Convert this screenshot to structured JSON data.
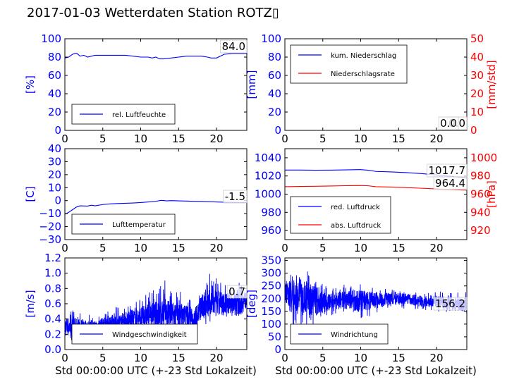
{
  "title": "2017-01-03 Wetterdaten Station ROTZ▯",
  "colors": {
    "left_axis": "#0000ff",
    "right_axis": "#ff0000",
    "series1": "#0000ff",
    "series2": "#ff0000"
  },
  "chart_data": [
    {
      "type": "line",
      "name": "humidity",
      "ylabel": "[%]",
      "xlim": [
        0,
        24
      ],
      "ylim": [
        0,
        100
      ],
      "xticks": [
        0,
        5,
        10,
        15,
        20
      ],
      "yticks": [
        0,
        20,
        40,
        60,
        80,
        100
      ],
      "legend": [
        "rel. Luftfeuchte"
      ],
      "legend_placement": "bottom-left",
      "annotations": [
        "84.0"
      ],
      "series": [
        {
          "name": "rel. Luftfeuchte",
          "color": "#0000ff",
          "x": [
            0,
            0.5,
            1,
            1.3,
            1.6,
            2,
            2.5,
            3,
            3.5,
            4,
            5,
            6,
            7,
            8,
            9,
            10,
            11,
            11.5,
            12,
            12.5,
            13,
            14,
            15,
            16,
            17,
            18,
            18.8,
            19.3,
            20,
            20.5,
            21,
            22,
            23,
            24
          ],
          "y": [
            79,
            80,
            83,
            84,
            84,
            81,
            82,
            80,
            81,
            82,
            82,
            82,
            82,
            82,
            81,
            80,
            80,
            79,
            80,
            78,
            78,
            79,
            80,
            81,
            81,
            81,
            80,
            79,
            79,
            81,
            83,
            84,
            84,
            84
          ]
        }
      ]
    },
    {
      "type": "line",
      "name": "precipitation",
      "ylabel": "[mm]",
      "y2label": "[mm/std]",
      "xlim": [
        0,
        24
      ],
      "ylim": [
        0,
        100
      ],
      "y2lim": [
        0,
        50
      ],
      "xticks": [
        0,
        5,
        10,
        15,
        20
      ],
      "yticks": [
        0,
        20,
        40,
        60,
        80,
        100
      ],
      "y2ticks": [
        0,
        10,
        20,
        30,
        40,
        50
      ],
      "legend": [
        "kum. Niederschlag",
        "Niederschlagsrate"
      ],
      "legend_placement": "top-left",
      "annotations": [
        "0.0",
        "0.0"
      ],
      "series": [
        {
          "name": "kum. Niederschlag",
          "color": "#0000ff",
          "axis": "left",
          "x": [
            0,
            24
          ],
          "y": [
            0,
            0
          ]
        },
        {
          "name": "Niederschlagsrate",
          "color": "#ff0000",
          "axis": "right",
          "x": [
            0,
            24
          ],
          "y": [
            0,
            0
          ]
        }
      ]
    },
    {
      "type": "line",
      "name": "temperature",
      "ylabel": "[C]",
      "xlim": [
        0,
        24
      ],
      "ylim": [
        -30,
        40
      ],
      "xticks": [
        0,
        5,
        10,
        15,
        20
      ],
      "yticks": [
        -30,
        -20,
        -10,
        0,
        10,
        20,
        30,
        40
      ],
      "legend": [
        "Lufttemperatur"
      ],
      "legend_placement": "bottom-left",
      "annotations": [
        "-1.5"
      ],
      "series": [
        {
          "name": "Lufttemperatur",
          "color": "#0000ff",
          "x": [
            0,
            0.5,
            1,
            1.5,
            2,
            3,
            3.5,
            4,
            5,
            6,
            7,
            8,
            9,
            10,
            11,
            12,
            12.7,
            13.5,
            14,
            15,
            16,
            17,
            18,
            19,
            20,
            21,
            22,
            23,
            24
          ],
          "y": [
            -10.5,
            -9,
            -7,
            -5,
            -4,
            -4.2,
            -3.5,
            -4,
            -3,
            -2.5,
            -2.2,
            -2,
            -1.8,
            -1.5,
            -1,
            -0.5,
            0.2,
            -0.2,
            0,
            -0.2,
            -0.3,
            -0.5,
            -0.6,
            -0.8,
            -1,
            -1.2,
            -1.4,
            -1.5,
            -1.5
          ]
        }
      ]
    },
    {
      "type": "line",
      "name": "pressure",
      "y2label": "[hPa]",
      "xlim": [
        0,
        24
      ],
      "ylim": [
        950,
        1050
      ],
      "y2lim": [
        910,
        1010
      ],
      "xticks": [
        0,
        5,
        10,
        15,
        20
      ],
      "yticks": [
        960,
        980,
        1000,
        1020,
        1040
      ],
      "y2ticks": [
        920,
        940,
        960,
        980,
        1000
      ],
      "legend": [
        "red. Luftdruck",
        "abs. Luftdruck"
      ],
      "legend_placement": "bottom-left",
      "annotations": [
        "1017.7",
        "964.4"
      ],
      "series": [
        {
          "name": "red. Luftdruck",
          "color": "#0000ff",
          "axis": "left",
          "x": [
            0,
            2,
            4,
            6,
            8,
            10,
            11,
            12,
            14,
            16,
            18,
            20,
            22,
            24
          ],
          "y": [
            1026.5,
            1026.5,
            1026.3,
            1026.4,
            1026.7,
            1027.0,
            1026.3,
            1025.0,
            1024.5,
            1023.7,
            1022.6,
            1021.2,
            1019.5,
            1017.7
          ]
        },
        {
          "name": "abs. Luftdruck",
          "color": "#ff0000",
          "axis": "right",
          "x": [
            0,
            2,
            4,
            6,
            8,
            10,
            11,
            12,
            14,
            16,
            18,
            20,
            22,
            24
          ],
          "y": [
            968.2,
            968.5,
            968.7,
            969.0,
            969.3,
            969.5,
            969.2,
            968.2,
            967.8,
            967.2,
            966.5,
            965.8,
            965.0,
            964.4
          ]
        }
      ]
    },
    {
      "type": "line",
      "name": "windspeed",
      "ylabel": "[m/s]",
      "xlabel": "Std 00:00:00 UTC (+-23 Std Lokalzeit)",
      "xlim": [
        0,
        24
      ],
      "ylim": [
        0,
        1.2
      ],
      "xticks": [
        0,
        5,
        10,
        15,
        20
      ],
      "yticks": [
        0.0,
        0.2,
        0.4,
        0.6,
        0.8,
        1.0,
        1.2
      ],
      "legend": [
        "Windgeschwindigkeit"
      ],
      "legend_placement": "bottom-left",
      "annotations": [
        "0.7"
      ],
      "noise_seed": 7,
      "envelope": {
        "x": [
          0,
          2,
          4,
          5,
          6,
          8,
          10,
          11,
          12,
          13,
          14,
          15,
          16,
          17,
          18,
          19,
          20,
          21,
          22,
          23,
          24
        ],
        "lo": [
          0.1,
          0.15,
          0.2,
          0.2,
          0.2,
          0.22,
          0.22,
          0.24,
          0.25,
          0.25,
          0.25,
          0.25,
          0.25,
          0.27,
          0.3,
          0.35,
          0.35,
          0.4,
          0.4,
          0.45,
          0.45
        ],
        "hi": [
          0.55,
          0.5,
          0.45,
          0.5,
          0.55,
          0.6,
          0.7,
          0.75,
          0.85,
          0.95,
          0.85,
          0.8,
          0.75,
          0.65,
          0.85,
          1.0,
          0.95,
          0.9,
          0.85,
          1.08,
          0.8
        ],
        "mid": [
          0.3,
          0.3,
          0.3,
          0.33,
          0.35,
          0.38,
          0.42,
          0.45,
          0.45,
          0.47,
          0.45,
          0.45,
          0.45,
          0.4,
          0.55,
          0.6,
          0.6,
          0.6,
          0.6,
          0.62,
          0.65
        ]
      },
      "series": [
        {
          "name": "Windgeschwindigkeit",
          "color": "#0000ff"
        }
      ]
    },
    {
      "type": "line",
      "name": "winddirection",
      "ylabel": "[deg]",
      "xlabel": "Std 00:00:00 UTC (+-23 Std Lokalzeit)",
      "xlim": [
        0,
        24
      ],
      "ylim": [
        0,
        360
      ],
      "xticks": [
        0,
        5,
        10,
        15,
        20
      ],
      "yticks": [
        0,
        50,
        100,
        150,
        200,
        250,
        300,
        350
      ],
      "legend": [
        "Windrichtung"
      ],
      "legend_placement": "bottom-left",
      "annotations": [
        "156.2"
      ],
      "noise_seed": 13,
      "envelope": {
        "x": [
          0,
          1,
          2,
          3,
          4,
          5,
          6,
          8,
          10,
          12,
          14,
          16,
          18,
          20,
          22,
          24
        ],
        "lo": [
          160,
          60,
          100,
          80,
          90,
          110,
          130,
          140,
          110,
          140,
          160,
          160,
          150,
          150,
          140,
          140
        ],
        "hi": [
          290,
          300,
          320,
          310,
          280,
          260,
          240,
          260,
          260,
          240,
          240,
          230,
          225,
          230,
          225,
          230
        ],
        "mid": [
          225,
          200,
          210,
          200,
          190,
          185,
          190,
          195,
          190,
          195,
          200,
          200,
          190,
          190,
          180,
          175
        ]
      },
      "series": [
        {
          "name": "Windrichtung",
          "color": "#0000ff"
        }
      ]
    }
  ]
}
